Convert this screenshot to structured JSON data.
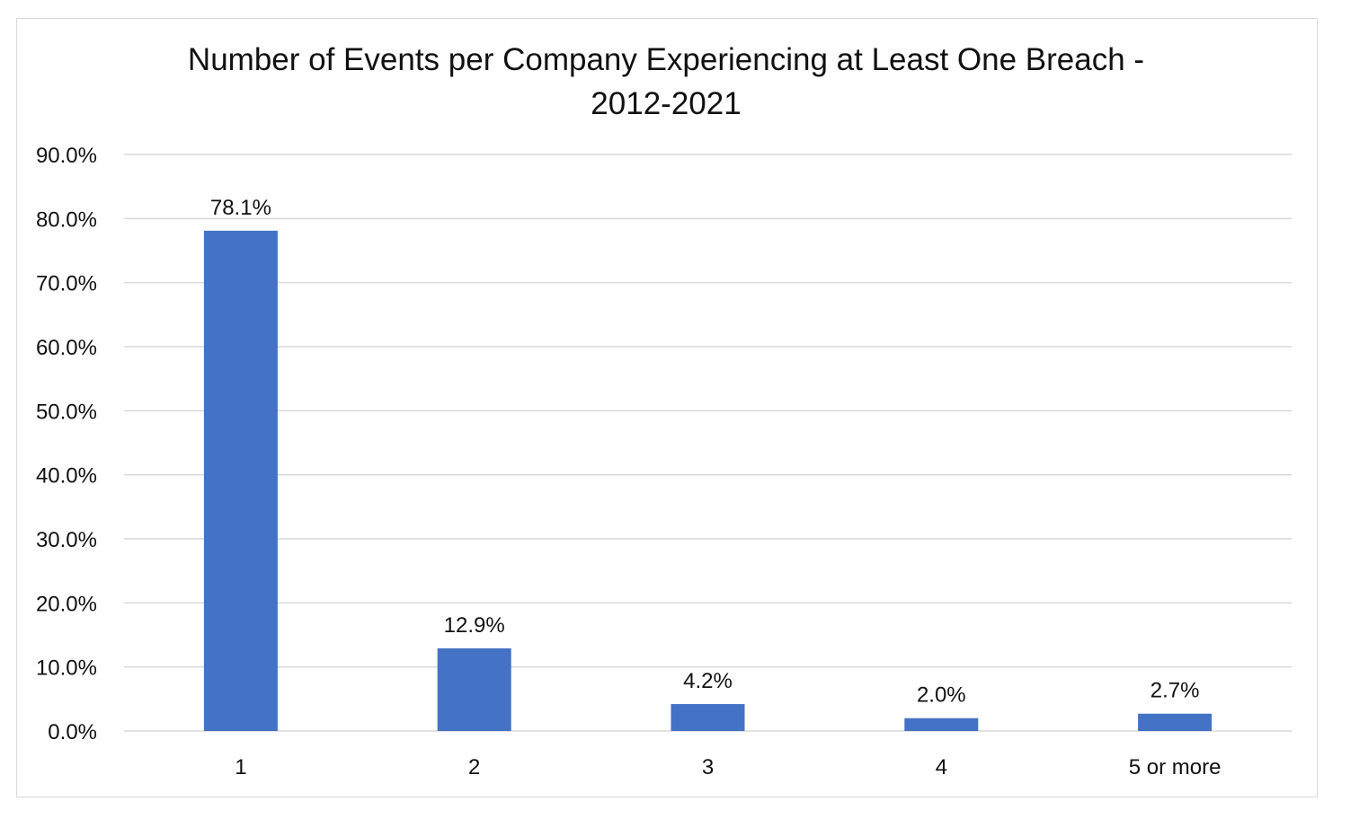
{
  "chart_data": {
    "type": "bar",
    "title_lines": [
      "Number of Events per Company Experiencing at Least One Breach -",
      "2012-2021"
    ],
    "categories": [
      "1",
      "2",
      "3",
      "4",
      "5 or more"
    ],
    "values": [
      78.1,
      12.9,
      4.2,
      2.0,
      2.7
    ],
    "data_labels": [
      "78.1%",
      "12.9%",
      "4.2%",
      "2.0%",
      "2.7%"
    ],
    "xlabel": "",
    "ylabel": "",
    "ylim": [
      0,
      90
    ],
    "yticks": [
      "0.0%",
      "10.0%",
      "20.0%",
      "30.0%",
      "40.0%",
      "50.0%",
      "60.0%",
      "70.0%",
      "80.0%",
      "90.0%"
    ],
    "grid": true,
    "legend": "none",
    "bar_color": "#4472C4"
  }
}
